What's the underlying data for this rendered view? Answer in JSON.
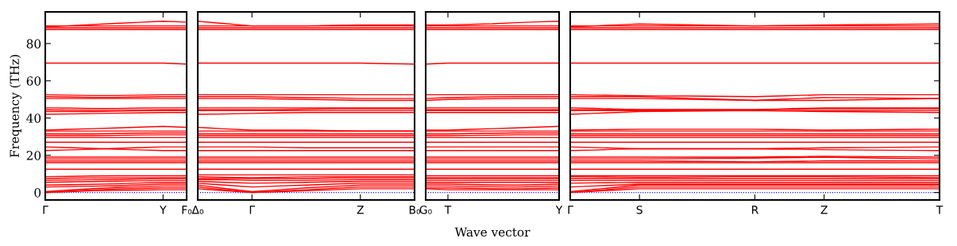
{
  "chart_data": [
    {
      "type": "line",
      "ylabel": "Frequency (THz)",
      "color": "#ff0000",
      "line_style": "solid",
      "ylim": [
        -4,
        97
      ],
      "yticks": [
        0,
        20,
        40,
        60,
        80
      ],
      "categories": [
        "Γ",
        null,
        null,
        null,
        null,
        "Y",
        "F₀"
      ],
      "ref_lines": [
        {
          "axis": "y",
          "value": 0,
          "color": "#0000ff",
          "line_style": "dotted"
        }
      ],
      "series": [
        {
          "values": [
            0,
            0.5,
            1,
            1.2,
            1.3,
            1.5,
            1.5
          ]
        },
        {
          "values": [
            0,
            0.7,
            1.4,
            1.9,
            2.2,
            2.5,
            2.5
          ]
        },
        {
          "values": [
            0.5,
            1.3,
            2.1,
            2.7,
            3.1,
            3.5,
            3.5
          ]
        },
        {
          "values": [
            3,
            3.2,
            3.4,
            3.7,
            4.1,
            4.5,
            4.5
          ]
        },
        {
          "values": [
            4,
            4.2,
            4.4,
            4.7,
            5.1,
            5.5,
            5.5
          ]
        },
        {
          "values": [
            5.5,
            5.7,
            5.9,
            6.1,
            6.3,
            6.5,
            6.5
          ]
        },
        {
          "values": [
            6.5,
            6.7,
            6.9,
            7.1,
            7.3,
            7.5,
            7.5
          ]
        },
        {
          "values": [
            7.5,
            7.7,
            7.9,
            8,
            8,
            8,
            8
          ]
        },
        {
          "values": [
            8.5,
            8.7,
            8.9,
            9,
            9,
            9,
            9
          ]
        },
        {
          "values": [
            12.5,
            12.5,
            12.5,
            12.5,
            12.5,
            12.5,
            12.5
          ]
        },
        {
          "values": [
            16,
            16,
            16,
            16,
            16,
            16,
            16
          ]
        },
        {
          "values": [
            17,
            17,
            17,
            17,
            17,
            17,
            17
          ]
        },
        {
          "values": [
            18,
            18,
            18,
            18,
            18,
            18,
            18
          ]
        },
        {
          "values": [
            19,
            19,
            19,
            19,
            19,
            19,
            19
          ]
        },
        {
          "values": [
            22.5,
            22.9,
            23.3,
            23.7,
            24.1,
            24.5,
            24.5
          ]
        },
        {
          "values": [
            24.5,
            24.1,
            23.7,
            23.3,
            22.9,
            22.5,
            22.5
          ]
        },
        {
          "values": [
            27,
            27,
            27,
            27,
            27,
            27,
            27
          ]
        },
        {
          "values": [
            29.5,
            29.5,
            29.5,
            29.5,
            29.5,
            29.5,
            29.5
          ]
        },
        {
          "values": [
            30.5,
            30.5,
            30.5,
            30.7,
            30.9,
            31,
            31
          ]
        },
        {
          "values": [
            31.5,
            31.5,
            31.5,
            31.7,
            31.9,
            32,
            32
          ]
        },
        {
          "values": [
            33,
            33,
            33,
            33,
            33,
            33,
            33
          ]
        },
        {
          "values": [
            33.5,
            33.9,
            34.3,
            34.7,
            35.1,
            35.5,
            35
          ]
        },
        {
          "values": [
            42,
            42.2,
            42.4,
            42.6,
            42.8,
            43,
            43
          ]
        },
        {
          "values": [
            43.5,
            43.5,
            43.5,
            43.7,
            43.9,
            44,
            44
          ]
        },
        {
          "values": [
            44.5,
            44.3,
            44.1,
            44.1,
            44.3,
            44.5,
            44.5
          ]
        },
        {
          "values": [
            45.5,
            45.3,
            45.1,
            45.1,
            45.3,
            45.5,
            45.5
          ]
        },
        {
          "values": [
            50.5,
            50.5,
            50.5,
            50.5,
            50.5,
            50.5,
            50.5
          ]
        },
        {
          "values": [
            51.5,
            51.3,
            51.1,
            51.1,
            51.3,
            51.5,
            51.5
          ]
        },
        {
          "values": [
            52.5,
            52.3,
            52.1,
            52.1,
            52.3,
            52.5,
            52.5
          ]
        },
        {
          "values": [
            69.5,
            69.5,
            69.5,
            69.5,
            69.5,
            69.5,
            69
          ]
        },
        {
          "values": [
            87.5,
            87.5,
            87.5,
            87.5,
            87.5,
            87.5,
            87.5
          ]
        },
        {
          "values": [
            88.5,
            88.5,
            88.5,
            88.5,
            88.5,
            88.5,
            88.5
          ]
        },
        {
          "values": [
            89.5,
            89.5,
            89.5,
            89.5,
            89.5,
            89.5,
            89.5
          ]
        },
        {
          "values": [
            89,
            89.6,
            90.2,
            90.8,
            91.4,
            92,
            91.5
          ]
        }
      ]
    },
    {
      "type": "line",
      "color": "#ff0000",
      "line_style": "solid",
      "tick_labels": "x",
      "ylim": [
        -4,
        97
      ],
      "categories": [
        "Δ₀",
        null,
        "Γ",
        null,
        null,
        null,
        "Z",
        null,
        "B₀"
      ],
      "ref_lines": [
        {
          "axis": "y",
          "value": 0,
          "color": "#0000ff",
          "line_style": "dotted"
        }
      ],
      "series": [
        {
          "values": [
            2,
            1,
            0,
            0.5,
            1,
            1.5,
            2,
            2,
            2
          ]
        },
        {
          "values": [
            3,
            1.5,
            0,
            0.8,
            1.5,
            2.3,
            3,
            3,
            3
          ]
        },
        {
          "values": [
            4,
            2.2,
            0.5,
            1.5,
            2.5,
            3.3,
            4,
            4,
            4
          ]
        },
        {
          "values": [
            5,
            4,
            3,
            3.5,
            4,
            4.5,
            5,
            5,
            5
          ]
        },
        {
          "values": [
            6,
            5.5,
            5,
            5.2,
            5.5,
            5.8,
            6,
            6,
            6
          ]
        },
        {
          "values": [
            7,
            6.8,
            6.5,
            6.5,
            6.5,
            6.8,
            7,
            7,
            7
          ]
        },
        {
          "values": [
            7.5,
            7.5,
            7.5,
            7.5,
            7.5,
            7.8,
            8,
            8,
            8
          ]
        },
        {
          "values": [
            8.5,
            8.2,
            8,
            8.2,
            8.5,
            8.5,
            8.5,
            8.5,
            8.5
          ]
        },
        {
          "values": [
            9.5,
            9.5,
            9.5,
            9.5,
            9.5,
            9.5,
            9.5,
            9.5,
            9.5
          ]
        },
        {
          "values": [
            12.5,
            12.5,
            12.5,
            12.5,
            12.5,
            12.5,
            12.5,
            12.5,
            12.5
          ]
        },
        {
          "values": [
            16,
            16,
            16,
            16,
            16,
            16,
            16,
            16,
            16
          ]
        },
        {
          "values": [
            17,
            17,
            17,
            17,
            17,
            17,
            17,
            17,
            17
          ]
        },
        {
          "values": [
            18,
            18,
            18,
            18,
            18,
            18,
            18,
            18,
            18
          ]
        },
        {
          "values": [
            19,
            19,
            19,
            19,
            19,
            19,
            19,
            19,
            19
          ]
        },
        {
          "values": [
            22.5,
            22.5,
            22.5,
            22.5,
            22.5,
            22.5,
            22.5,
            22.5,
            22.5
          ]
        },
        {
          "values": [
            24.5,
            24.5,
            24.5,
            24.3,
            24,
            24,
            24,
            24,
            24
          ]
        },
        {
          "values": [
            27,
            27,
            27,
            27,
            27,
            27,
            27,
            27,
            27
          ]
        },
        {
          "values": [
            29.5,
            29.5,
            29.5,
            29.5,
            29.5,
            29.5,
            29.5,
            29.5,
            29.5
          ]
        },
        {
          "values": [
            30.5,
            30.5,
            30.5,
            30.5,
            30.5,
            30.5,
            30.5,
            30.5,
            30.5
          ]
        },
        {
          "values": [
            31.5,
            31.5,
            31.5,
            31.5,
            31.5,
            31.5,
            31.5,
            31.5,
            31.5
          ]
        },
        {
          "values": [
            33,
            33,
            33,
            33,
            33,
            33,
            33,
            33,
            33
          ]
        },
        {
          "values": [
            35,
            34.2,
            33.5,
            33.5,
            33.5,
            33.2,
            33,
            33,
            33
          ]
        },
        {
          "values": [
            42,
            42.2,
            42.5,
            42.8,
            43,
            43,
            43,
            43,
            43
          ]
        },
        {
          "values": [
            44,
            44,
            44,
            44,
            44,
            44,
            44,
            44,
            44
          ]
        },
        {
          "values": [
            44.5,
            44.5,
            44.5,
            44.5,
            44.8,
            45,
            45,
            45,
            45
          ]
        },
        {
          "values": [
            45.5,
            45.5,
            45.5,
            45.5,
            45.5,
            45.5,
            45.5,
            45.5,
            45.5
          ]
        },
        {
          "values": [
            50.5,
            50.5,
            50.5,
            50.2,
            50,
            49.8,
            49.5,
            49.5,
            49.5
          ]
        },
        {
          "values": [
            51.5,
            51.5,
            51.5,
            51.2,
            51,
            50.8,
            50.5,
            50.5,
            50.5
          ]
        },
        {
          "values": [
            52.5,
            52.5,
            52.5,
            52.5,
            52.5,
            52.5,
            52.5,
            52.5,
            52.5
          ]
        },
        {
          "values": [
            69.5,
            69.5,
            69.5,
            69.5,
            69.5,
            69.5,
            69.5,
            69.2,
            69
          ]
        },
        {
          "values": [
            87.5,
            87.5,
            87.5,
            87.5,
            87.5,
            87.5,
            87.5,
            87.5,
            87.5
          ]
        },
        {
          "values": [
            88.5,
            88.5,
            88.5,
            88.5,
            88.5,
            88.5,
            88.5,
            88.5,
            88.5
          ]
        },
        {
          "values": [
            89.5,
            89.5,
            89.5,
            89.5,
            89.5,
            89.5,
            89.5,
            89.5,
            89.5
          ]
        },
        {
          "values": [
            92,
            90.7,
            89.5,
            89.5,
            89.5,
            89.8,
            90,
            90,
            90
          ]
        }
      ]
    },
    {
      "type": "line",
      "xlabel": "Wave vector",
      "color": "#ff0000",
      "line_style": "solid",
      "tick_labels": "x",
      "ylim": [
        -4,
        97
      ],
      "categories": [
        "G₀",
        "T",
        null,
        null,
        null,
        null,
        "Y"
      ],
      "ref_lines": [
        {
          "axis": "y",
          "value": 0,
          "color": "#0000ff",
          "line_style": "dotted"
        }
      ],
      "series": [
        {
          "values": [
            2,
            1.5,
            1.5,
            1.5,
            1.5,
            1.5,
            1.5
          ]
        },
        {
          "values": [
            2.5,
            2.5,
            2.3,
            2.1,
            2,
            2.2,
            2.5
          ]
        },
        {
          "values": [
            3.5,
            3.5,
            3.3,
            3.1,
            3,
            3.2,
            3.5
          ]
        },
        {
          "values": [
            4.5,
            4.5,
            4.3,
            4.1,
            4,
            4.2,
            4.5
          ]
        },
        {
          "values": [
            5.5,
            5.5,
            5.5,
            5.5,
            5.5,
            5.5,
            5.5
          ]
        },
        {
          "values": [
            6.5,
            6.5,
            6.5,
            6.5,
            6.5,
            6.5,
            6.5
          ]
        },
        {
          "values": [
            7.5,
            7.5,
            7.5,
            7.5,
            7.5,
            7.5,
            7.5
          ]
        },
        {
          "values": [
            8,
            8,
            8,
            8,
            8,
            8,
            8
          ]
        },
        {
          "values": [
            9,
            9,
            9,
            9,
            9,
            9,
            9
          ]
        },
        {
          "values": [
            12.5,
            12.5,
            12.5,
            12.5,
            12.5,
            12.5,
            12.5
          ]
        },
        {
          "values": [
            16,
            16,
            16,
            16,
            16,
            16,
            16
          ]
        },
        {
          "values": [
            17,
            17,
            17,
            17,
            17,
            17,
            17
          ]
        },
        {
          "values": [
            18,
            18,
            18,
            18,
            18,
            18,
            18
          ]
        },
        {
          "values": [
            19,
            19,
            19,
            19,
            19,
            19,
            19
          ]
        },
        {
          "values": [
            22.5,
            22.5,
            22.5,
            22.5,
            22.5,
            22.5,
            22.5
          ]
        },
        {
          "values": [
            24.5,
            24.5,
            24.5,
            24.5,
            24.5,
            24.5,
            24.5
          ]
        },
        {
          "values": [
            27,
            27,
            27,
            27,
            27,
            27,
            27
          ]
        },
        {
          "values": [
            29.5,
            29.5,
            29.5,
            29.5,
            29.5,
            29.5,
            29.5
          ]
        },
        {
          "values": [
            30.5,
            30.5,
            30.7,
            30.8,
            31,
            31,
            31
          ]
        },
        {
          "values": [
            31.5,
            31.5,
            31.7,
            31.8,
            32,
            32,
            32
          ]
        },
        {
          "values": [
            33,
            33,
            33,
            33,
            33,
            33,
            33
          ]
        },
        {
          "values": [
            33.5,
            33.5,
            33.9,
            34.3,
            34.7,
            35.1,
            35.5
          ]
        },
        {
          "values": [
            43,
            43,
            43,
            43,
            43,
            43,
            43
          ]
        },
        {
          "values": [
            44,
            44,
            44,
            44,
            44,
            44,
            44
          ]
        },
        {
          "values": [
            44.5,
            44.5,
            44.5,
            44.5,
            44.5,
            44.5,
            44.5
          ]
        },
        {
          "values": [
            45.5,
            45.5,
            45.5,
            45.5,
            45.5,
            45.5,
            45.5
          ]
        },
        {
          "values": [
            49.5,
            50,
            50.2,
            50.4,
            50.5,
            50.5,
            50.5
          ]
        },
        {
          "values": [
            50.5,
            51,
            51.2,
            51.4,
            51.5,
            51.5,
            51.5
          ]
        },
        {
          "values": [
            52.5,
            52.5,
            52.5,
            52.5,
            52.5,
            52.5,
            52.5
          ]
        },
        {
          "values": [
            69,
            69.5,
            69.5,
            69.5,
            69.5,
            69.5,
            69.5
          ]
        },
        {
          "values": [
            87.5,
            87.5,
            87.5,
            87.5,
            87.5,
            87.5,
            87.5
          ]
        },
        {
          "values": [
            88.5,
            88.5,
            88.5,
            88.5,
            88.5,
            88.5,
            88.5
          ]
        },
        {
          "values": [
            89.5,
            89.5,
            89.5,
            89.5,
            89.5,
            89.5,
            89.5
          ]
        },
        {
          "values": [
            90,
            90,
            90.3,
            90.6,
            91.2,
            91.6,
            92
          ]
        }
      ]
    },
    {
      "type": "line",
      "color": "#ff0000",
      "line_style": "solid",
      "tick_labels": "x",
      "ylim": [
        -4,
        97
      ],
      "yticks": [
        {
          "value": 0,
          "label": null
        },
        {
          "value": 20,
          "label": null
        },
        {
          "value": 40,
          "label": null
        },
        {
          "value": 60,
          "label": null
        },
        {
          "value": 80,
          "label": null
        }
      ],
      "categories": [
        "Γ",
        null,
        null,
        "S",
        null,
        null,
        null,
        null,
        "R",
        null,
        null,
        "Z",
        null,
        null,
        null,
        null,
        "T"
      ],
      "ref_lines": [
        {
          "axis": "y",
          "value": 0,
          "color": "#0000ff",
          "line_style": "dotted"
        }
      ],
      "series": [
        {
          "values": [
            0,
            0.7,
            1.3,
            2,
            2,
            2,
            2,
            2,
            2,
            2,
            2,
            2,
            2,
            2,
            2,
            2,
            2
          ]
        },
        {
          "values": [
            0,
            1,
            2,
            3,
            3,
            3,
            3,
            3,
            3,
            3,
            3,
            3,
            3,
            3,
            3,
            3,
            3
          ]
        },
        {
          "values": [
            0.5,
            1.7,
            2.8,
            4,
            4,
            4,
            4,
            4,
            4,
            4,
            4,
            4,
            4,
            4,
            4,
            4,
            4
          ]
        },
        {
          "values": [
            3,
            3.5,
            4,
            4.5,
            4.5,
            4.5,
            4.5,
            4.5,
            4.5,
            4.5,
            4.5,
            4.5,
            4.5,
            4.5,
            4.5,
            4.5,
            4.5
          ]
        },
        {
          "values": [
            5,
            5.2,
            5.3,
            5.5,
            5.5,
            5.5,
            5.5,
            5.5,
            5.5,
            5.5,
            5.5,
            5.5,
            5.5,
            5.5,
            5.5,
            5.5,
            5.5
          ]
        },
        {
          "values": [
            6.5,
            6.5,
            6.5,
            6.5,
            6.5,
            6.5,
            6.5,
            6.5,
            6.5,
            6.5,
            6.5,
            6.5,
            6.5,
            6.5,
            6.5,
            6.5,
            6.5
          ]
        },
        {
          "values": [
            7.5,
            7.5,
            7.5,
            7.5,
            7.5,
            7.5,
            7.5,
            7.5,
            7.5,
            7.5,
            7.5,
            7.5,
            7.5,
            7.5,
            7.5,
            7.5,
            7.5
          ]
        },
        {
          "values": [
            8.5,
            8.4,
            8.3,
            8.2,
            8.2,
            8.3,
            8.4,
            8.5,
            8.5,
            8.5,
            8.5,
            8.5,
            8.4,
            8.3,
            8.2,
            8.1,
            8
          ]
        },
        {
          "values": [
            9,
            9,
            9,
            9,
            9,
            9,
            9,
            9,
            9,
            9,
            9,
            9,
            9,
            9,
            9,
            9,
            9
          ]
        },
        {
          "values": [
            12.5,
            12.5,
            12.5,
            12.5,
            12.5,
            12.5,
            12.5,
            12.5,
            12.5,
            12.5,
            12.5,
            12.5,
            12.5,
            12.5,
            12.5,
            12.5,
            12.5
          ]
        },
        {
          "values": [
            16,
            16,
            16,
            16,
            16,
            16,
            16,
            16,
            16,
            16,
            16,
            16,
            16,
            16,
            16,
            16,
            16
          ]
        },
        {
          "values": [
            17,
            17,
            17,
            17,
            16.9,
            16.8,
            16.7,
            16.6,
            16.5,
            16.7,
            16.8,
            17,
            17,
            17,
            17,
            17,
            17
          ]
        },
        {
          "values": [
            18,
            18,
            18,
            18,
            18.1,
            18.2,
            18.3,
            18.4,
            18.5,
            18.7,
            18.8,
            19,
            18.8,
            18.6,
            18.4,
            18.2,
            18
          ]
        },
        {
          "values": [
            19,
            19,
            19,
            19,
            19,
            19,
            19,
            19,
            19,
            19.2,
            19.3,
            19.5,
            19.4,
            19.3,
            19.2,
            19.1,
            19
          ]
        },
        {
          "values": [
            22.5,
            22.8,
            23.2,
            23.5,
            23.5,
            23.5,
            23.5,
            23.5,
            23.5,
            23.3,
            23.2,
            23,
            22.9,
            22.8,
            22.7,
            22.6,
            22.5
          ]
        },
        {
          "values": [
            24.5,
            24.2,
            23.8,
            23.5,
            23.5,
            23.5,
            23.5,
            23.5,
            23.5,
            23.7,
            23.8,
            24,
            24.1,
            24.2,
            24.3,
            24.4,
            24.5
          ]
        },
        {
          "values": [
            27,
            27,
            27,
            27,
            27,
            27,
            27,
            27,
            27,
            27,
            27,
            27,
            27,
            27,
            27,
            27,
            27
          ]
        },
        {
          "values": [
            29.5,
            29.5,
            29.5,
            29.5,
            29.5,
            29.5,
            29.5,
            29.5,
            29.5,
            29.5,
            29.5,
            29.5,
            29.5,
            29.5,
            29.5,
            29.5,
            29.5
          ]
        },
        {
          "values": [
            30.5,
            30.5,
            30.5,
            30.5,
            30.5,
            30.5,
            30.5,
            30.5,
            30.5,
            30.5,
            30.5,
            30.5,
            30.5,
            30.5,
            30.5,
            30.5,
            30.5
          ]
        },
        {
          "values": [
            31.5,
            31.5,
            31.5,
            31.5,
            31.5,
            31.5,
            31.5,
            31.5,
            31.5,
            31.5,
            31.5,
            31.5,
            31.5,
            31.5,
            31.5,
            31.5,
            31.5
          ]
        },
        {
          "values": [
            33,
            33,
            33,
            33,
            33,
            33,
            33,
            33,
            33,
            33,
            33,
            33,
            33,
            33,
            33,
            33,
            33
          ]
        },
        {
          "values": [
            33.5,
            33.7,
            33.8,
            34,
            34,
            34,
            34,
            34,
            34,
            33.8,
            33.7,
            33.5,
            33.6,
            33.7,
            33.8,
            33.9,
            34
          ]
        },
        {
          "values": [
            42,
            42.5,
            43,
            43.5,
            43.6,
            43.7,
            43.8,
            43.9,
            44,
            43.8,
            43.7,
            43.5,
            43.4,
            43.3,
            43.2,
            43.1,
            43
          ]
        },
        {
          "values": [
            44,
            44,
            44,
            44,
            44,
            44,
            44,
            44,
            44,
            44,
            44,
            44,
            44,
            44,
            44,
            44,
            44
          ]
        },
        {
          "values": [
            44.5,
            44.5,
            44.5,
            44.5,
            44.5,
            44.5,
            44.5,
            44.5,
            44.5,
            44.7,
            44.8,
            45,
            45,
            45,
            45,
            45,
            45
          ]
        },
        {
          "values": [
            45.5,
            45.2,
            44.8,
            44.5,
            44.5,
            44.5,
            44.5,
            44.5,
            44.5,
            44.8,
            45.2,
            45.5,
            45.5,
            45.5,
            45.5,
            45.5,
            45.5
          ]
        },
        {
          "values": [
            50.5,
            50.5,
            50.5,
            50.5,
            50.3,
            50.1,
            49.9,
            49.7,
            49.5,
            49.5,
            49.5,
            49.5,
            49.7,
            49.9,
            50.1,
            50.3,
            50.5
          ]
        },
        {
          "values": [
            51.5,
            51.5,
            51.5,
            51.5,
            51.1,
            50.7,
            50.3,
            49.9,
            49.5,
            50,
            50.5,
            51,
            50.9,
            50.8,
            50.7,
            50.6,
            50.5
          ]
        },
        {
          "values": [
            52.5,
            52.3,
            52.2,
            52,
            51.9,
            51.8,
            51.7,
            51.6,
            51.5,
            51.8,
            52.2,
            52.5,
            52.5,
            52.5,
            52.5,
            52.5,
            52.5
          ]
        },
        {
          "values": [
            69.5,
            69.5,
            69.5,
            69.5,
            69.5,
            69.5,
            69.5,
            69.5,
            69.5,
            69.5,
            69.5,
            69.5,
            69.5,
            69.5,
            69.5,
            69.5,
            69.5
          ]
        },
        {
          "values": [
            87.5,
            87.5,
            87.5,
            87.5,
            87.5,
            87.5,
            87.5,
            87.5,
            87.5,
            87.5,
            87.5,
            87.5,
            87.5,
            87.5,
            87.5,
            87.5,
            87.5
          ]
        },
        {
          "values": [
            88.5,
            88.5,
            88.5,
            88.5,
            88.5,
            88.5,
            88.5,
            88.5,
            88.5,
            88.5,
            88.5,
            88.5,
            88.5,
            88.5,
            88.5,
            88.5,
            88.5
          ]
        },
        {
          "values": [
            89.5,
            89.5,
            89.5,
            89.5,
            89.5,
            89.5,
            89.5,
            89.5,
            89.5,
            89.5,
            89.5,
            89.5,
            89.5,
            89.5,
            89.5,
            89.5,
            89.5
          ]
        },
        {
          "values": [
            89,
            89.5,
            90,
            90.5,
            90.3,
            90.1,
            89.9,
            89.7,
            89.5,
            89.7,
            89.8,
            90,
            90.1,
            90.2,
            90.3,
            90.4,
            90.5
          ]
        }
      ]
    }
  ]
}
